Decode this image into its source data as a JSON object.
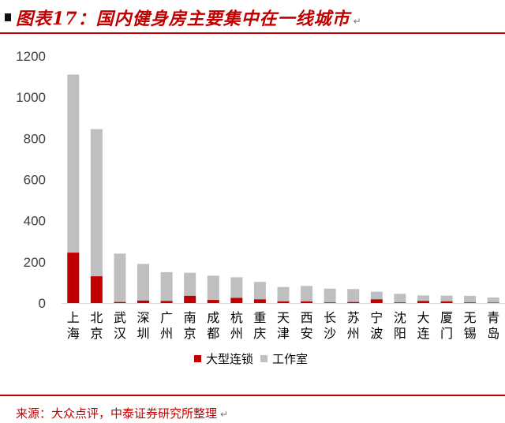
{
  "header": {
    "title": "图表17：国内健身房主要集中在一线城市",
    "title_mark": "↵"
  },
  "footer": {
    "source": "来源：大众点评，中泰证券研究所整理",
    "source_mark": "↵"
  },
  "colors": {
    "accent": "#c00000",
    "series_chain": "#c00000",
    "series_studio": "#bfbfbf"
  },
  "chart_data": {
    "type": "bar",
    "stacked": true,
    "categories": [
      "上海",
      "北京",
      "武汉",
      "深圳",
      "广州",
      "南京",
      "成都",
      "杭州",
      "重庆",
      "天津",
      "西安",
      "长沙",
      "苏州",
      "宁波",
      "沈阳",
      "大连",
      "厦门",
      "无锡",
      "青岛"
    ],
    "series": [
      {
        "name": "大型连锁",
        "color": "#c00000",
        "values": [
          245,
          130,
          5,
          12,
          10,
          35,
          15,
          25,
          18,
          8,
          8,
          3,
          5,
          18,
          3,
          10,
          8,
          3,
          2
        ]
      },
      {
        "name": "工作室",
        "color": "#bfbfbf",
        "values": [
          865,
          715,
          235,
          178,
          140,
          112,
          118,
          100,
          85,
          70,
          75,
          67,
          63,
          37,
          42,
          27,
          28,
          32,
          25
        ]
      }
    ],
    "yticks": [
      0,
      200,
      400,
      600,
      800,
      1000,
      1200
    ],
    "ylim": [
      0,
      1200
    ],
    "grid": false,
    "legend_position": "bottom"
  }
}
